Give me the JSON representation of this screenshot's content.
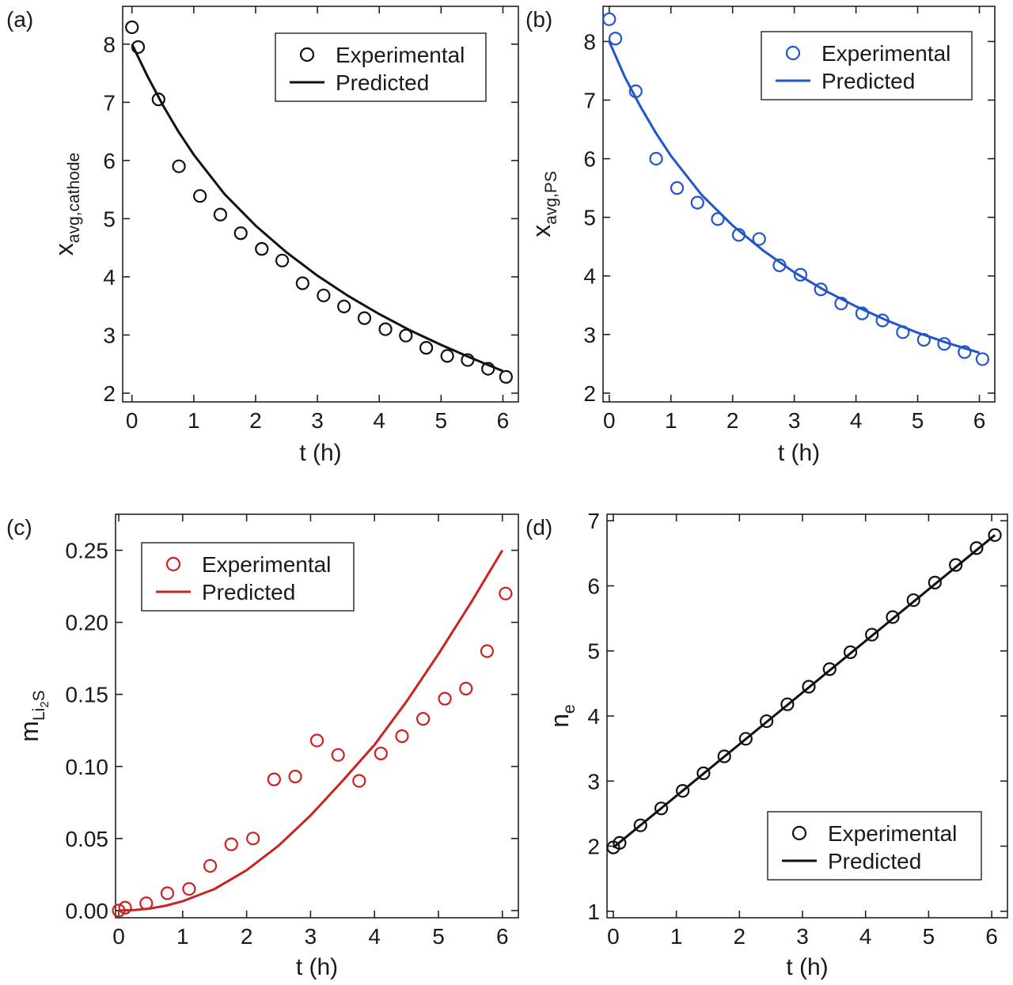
{
  "chart_data": [
    {
      "type": "scatter",
      "panel_label": "(a)",
      "color": "#111111",
      "xlabel": "t (h)",
      "ylabel": "x",
      "ylabel_sub": "avg,cathode",
      "xlim": [
        -0.15,
        6.25
      ],
      "ylim": [
        1.85,
        8.65
      ],
      "xticks": [
        0,
        1,
        2,
        3,
        4,
        5,
        6
      ],
      "yticks": [
        2,
        3,
        4,
        5,
        6,
        7,
        8
      ],
      "legend": {
        "position": "top-right",
        "entries": [
          "Experimental",
          "Predicted"
        ]
      },
      "series": [
        {
          "name": "Experimental",
          "kind": "markers",
          "x": [
            0.0,
            0.1,
            0.43,
            0.76,
            1.1,
            1.43,
            1.76,
            2.1,
            2.43,
            2.76,
            3.1,
            3.43,
            3.76,
            4.1,
            4.43,
            4.76,
            5.1,
            5.43,
            5.76,
            6.05
          ],
          "y": [
            8.29,
            7.95,
            7.05,
            5.9,
            5.39,
            5.07,
            4.75,
            4.48,
            4.28,
            3.89,
            3.68,
            3.49,
            3.29,
            3.1,
            2.99,
            2.78,
            2.64,
            2.57,
            2.42,
            2.28
          ]
        },
        {
          "name": "Predicted",
          "kind": "line",
          "x": [
            0.0,
            0.25,
            0.5,
            0.75,
            1.0,
            1.5,
            2.0,
            2.5,
            3.0,
            3.5,
            4.0,
            4.5,
            5.0,
            5.5,
            6.0
          ],
          "y": [
            8.0,
            7.45,
            6.95,
            6.5,
            6.1,
            5.42,
            4.88,
            4.42,
            4.02,
            3.67,
            3.36,
            3.08,
            2.83,
            2.6,
            2.38
          ]
        }
      ]
    },
    {
      "type": "scatter",
      "panel_label": "(b)",
      "color": "#2155c9",
      "xlabel": "t (h)",
      "ylabel": "x",
      "ylabel_sub": "avg,PS",
      "xlim": [
        -0.1,
        6.25
      ],
      "ylim": [
        1.85,
        8.6
      ],
      "xticks": [
        0,
        1,
        2,
        3,
        4,
        5,
        6
      ],
      "yticks": [
        2,
        3,
        4,
        5,
        6,
        7,
        8
      ],
      "legend": {
        "position": "top-right",
        "entries": [
          "Experimental",
          "Predicted"
        ]
      },
      "series": [
        {
          "name": "Experimental",
          "kind": "markers",
          "x": [
            0.0,
            0.1,
            0.43,
            0.76,
            1.1,
            1.43,
            1.76,
            2.1,
            2.43,
            2.76,
            3.1,
            3.43,
            3.76,
            4.1,
            4.43,
            4.76,
            5.1,
            5.43,
            5.76,
            6.05
          ],
          "y": [
            8.38,
            8.05,
            7.15,
            6.0,
            5.5,
            5.25,
            4.97,
            4.7,
            4.63,
            4.18,
            4.02,
            3.77,
            3.53,
            3.36,
            3.24,
            3.04,
            2.91,
            2.84,
            2.7,
            2.58
          ]
        },
        {
          "name": "Predicted",
          "kind": "line",
          "x": [
            0.0,
            0.25,
            0.5,
            0.75,
            1.0,
            1.5,
            2.0,
            2.5,
            3.0,
            3.5,
            4.0,
            4.5,
            5.0,
            5.5,
            6.0
          ],
          "y": [
            8.0,
            7.4,
            6.9,
            6.45,
            6.05,
            5.38,
            4.86,
            4.43,
            4.06,
            3.75,
            3.48,
            3.24,
            3.03,
            2.85,
            2.69
          ]
        }
      ]
    },
    {
      "type": "scatter",
      "panel_label": "(c)",
      "color": "#cc2222",
      "xlabel": "t (h)",
      "ylabel": "m",
      "ylabel_sub": "Li",
      "ylabel_subsub": "2",
      "ylabel_sub2": "S",
      "xlim": [
        -0.05,
        6.25
      ],
      "ylim": [
        -0.005,
        0.275
      ],
      "xticks": [
        0,
        1,
        2,
        3,
        4,
        5,
        6
      ],
      "xtick_labels": [
        "0",
        "1",
        "2",
        "3",
        "4",
        "5",
        "6"
      ],
      "yticks": [
        0.0,
        0.05,
        0.1,
        0.15,
        0.2,
        0.25
      ],
      "ytick_labels": [
        "0.00",
        "0.05",
        "0.10",
        "0.15",
        "0.20",
        "0.25"
      ],
      "legend": {
        "position": "top-left",
        "entries": [
          "Experimental",
          "Predicted"
        ]
      },
      "series": [
        {
          "name": "Experimental",
          "kind": "markers",
          "x": [
            0.0,
            0.1,
            0.43,
            0.76,
            1.1,
            1.43,
            1.76,
            2.1,
            2.43,
            2.76,
            3.1,
            3.43,
            3.76,
            4.1,
            4.43,
            4.76,
            5.1,
            5.43,
            5.76,
            6.05
          ],
          "y": [
            0.0,
            0.002,
            0.005,
            0.012,
            0.015,
            0.031,
            0.046,
            0.05,
            0.091,
            0.093,
            0.118,
            0.108,
            0.09,
            0.109,
            0.121,
            0.133,
            0.147,
            0.154,
            0.18,
            0.22
          ]
        },
        {
          "name": "Predicted",
          "kind": "line",
          "x": [
            0.0,
            0.25,
            0.5,
            0.75,
            1.0,
            1.5,
            2.0,
            2.5,
            3.0,
            3.5,
            4.0,
            4.5,
            5.0,
            5.5,
            6.0
          ],
          "y": [
            0.0,
            0.0004,
            0.0015,
            0.0035,
            0.0065,
            0.015,
            0.028,
            0.045,
            0.066,
            0.09,
            0.115,
            0.145,
            0.178,
            0.213,
            0.25
          ]
        }
      ]
    },
    {
      "type": "scatter",
      "panel_label": "(d)",
      "color": "#111111",
      "xlabel": "t (h)",
      "ylabel": "n",
      "ylabel_sub": "e",
      "xlim": [
        -0.1,
        6.25
      ],
      "ylim": [
        0.9,
        7.1
      ],
      "xticks": [
        0,
        1,
        2,
        3,
        4,
        5,
        6
      ],
      "yticks": [
        1,
        2,
        3,
        4,
        5,
        6,
        7
      ],
      "legend": {
        "position": "bottom-right",
        "entries": [
          "Experimental",
          "Predicted"
        ]
      },
      "series": [
        {
          "name": "Experimental",
          "kind": "markers",
          "x": [
            0.0,
            0.1,
            0.43,
            0.76,
            1.1,
            1.43,
            1.76,
            2.1,
            2.43,
            2.76,
            3.1,
            3.43,
            3.76,
            4.1,
            4.43,
            4.76,
            5.1,
            5.43,
            5.76,
            6.05
          ],
          "y": [
            1.98,
            2.05,
            2.32,
            2.58,
            2.85,
            3.12,
            3.38,
            3.65,
            3.92,
            4.18,
            4.45,
            4.72,
            4.98,
            5.25,
            5.52,
            5.78,
            6.05,
            6.32,
            6.58,
            6.78
          ]
        },
        {
          "name": "Predicted",
          "kind": "line",
          "x": [
            0.0,
            6.05
          ],
          "y": [
            1.98,
            6.78
          ]
        }
      ]
    }
  ]
}
